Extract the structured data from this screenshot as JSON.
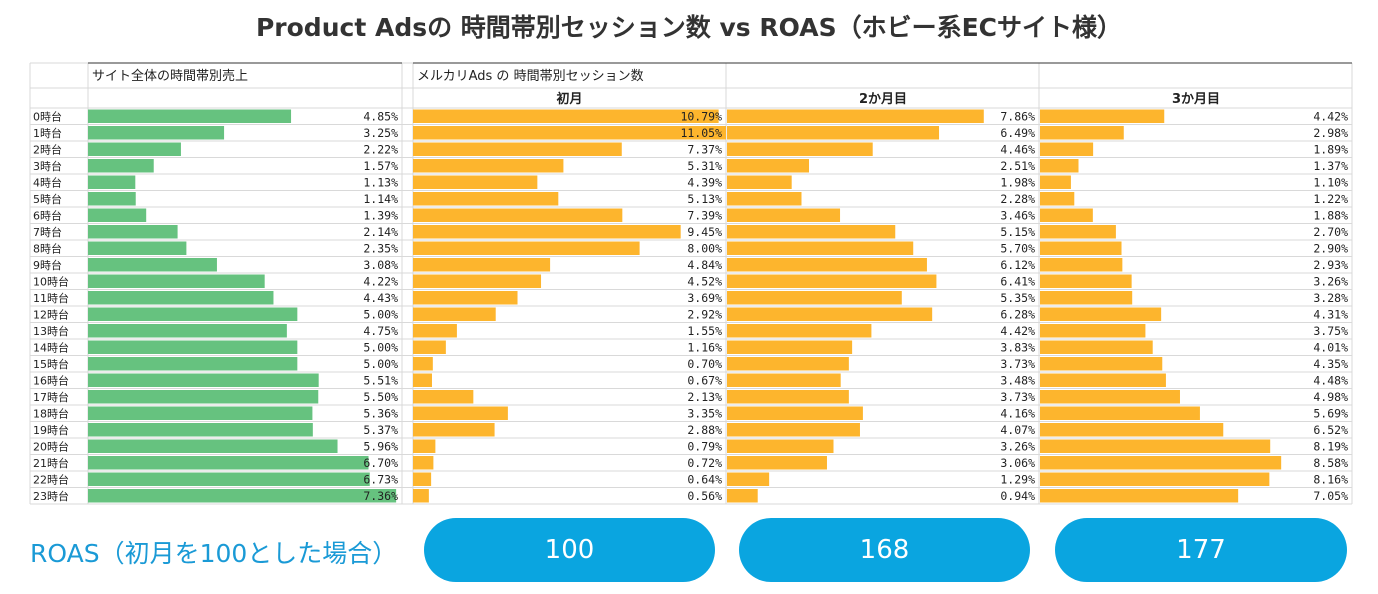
{
  "title": "Product Adsの 時間帯別セッション数 vs ROAS（ホビー系ECサイト様）",
  "colors": {
    "green": "#66c27f",
    "orange": "#fdb52d",
    "pill": "#0aa5e0",
    "grid": "#d9d9d9"
  },
  "chart_data": {
    "type": "table",
    "row_labels": [
      "0時台",
      "1時台",
      "2時台",
      "3時台",
      "4時台",
      "5時台",
      "6時台",
      "7時台",
      "8時台",
      "9時台",
      "10時台",
      "11時台",
      "12時台",
      "13時台",
      "14時台",
      "15時台",
      "16時台",
      "17時台",
      "18時台",
      "19時台",
      "20時台",
      "21時台",
      "22時台",
      "23時台"
    ],
    "group_headers": [
      "サイト全体の時間帯別売上",
      "メルカリAds の 時間帯別セッション数"
    ],
    "series": [
      {
        "name": "",
        "color": "#66c27f",
        "max": 7.5,
        "values": [
          4.85,
          3.25,
          2.22,
          1.57,
          1.13,
          1.14,
          1.39,
          2.14,
          2.35,
          3.08,
          4.22,
          4.43,
          5.0,
          4.75,
          5.0,
          5.0,
          5.51,
          5.5,
          5.36,
          5.37,
          5.96,
          6.7,
          6.73,
          7.36
        ],
        "labels": [
          "4.85%",
          "3.25%",
          "2.22%",
          "1.57%",
          "1.13%",
          "1.14%",
          "1.39%",
          "2.14%",
          "2.35%",
          "3.08%",
          "4.22%",
          "4.43%",
          "5.00%",
          "4.75%",
          "5.00%",
          "5.00%",
          "5.51%",
          "5.50%",
          "5.36%",
          "5.37%",
          "5.96%",
          "6.70%",
          "6.73%",
          "7.36%"
        ]
      },
      {
        "name": "初月",
        "color": "#fdb52d",
        "max": 11.05,
        "values": [
          10.79,
          11.05,
          7.37,
          5.31,
          4.39,
          5.13,
          7.39,
          9.45,
          8.0,
          4.84,
          4.52,
          3.69,
          2.92,
          1.55,
          1.16,
          0.7,
          0.67,
          2.13,
          3.35,
          2.88,
          0.79,
          0.72,
          0.64,
          0.56
        ],
        "labels": [
          "10.79%",
          "11.05%",
          "7.37%",
          "5.31%",
          "4.39%",
          "5.13%",
          "7.39%",
          "9.45%",
          "8.00%",
          "4.84%",
          "4.52%",
          "3.69%",
          "2.92%",
          "1.55%",
          "1.16%",
          "0.70%",
          "0.67%",
          "2.13%",
          "3.35%",
          "2.88%",
          "0.79%",
          "0.72%",
          "0.64%",
          "0.56%"
        ]
      },
      {
        "name": "2か月目",
        "color": "#fdb52d",
        "max": 9.55,
        "values": [
          7.86,
          6.49,
          4.46,
          2.51,
          1.98,
          2.28,
          3.46,
          5.15,
          5.7,
          6.12,
          6.41,
          5.35,
          6.28,
          4.42,
          3.83,
          3.73,
          3.48,
          3.73,
          4.16,
          4.07,
          3.26,
          3.06,
          1.29,
          0.94
        ],
        "labels": [
          "7.86%",
          "6.49%",
          "4.46%",
          "2.51%",
          "1.98%",
          "2.28%",
          "3.46%",
          "5.15%",
          "5.70%",
          "6.12%",
          "6.41%",
          "5.35%",
          "6.28%",
          "4.42%",
          "3.83%",
          "3.73%",
          "3.48%",
          "3.73%",
          "4.16%",
          "4.07%",
          "3.26%",
          "3.06%",
          "1.29%",
          "0.94%"
        ]
      },
      {
        "name": "3か月目",
        "color": "#fdb52d",
        "max": 11.1,
        "values": [
          4.42,
          2.98,
          1.89,
          1.37,
          1.1,
          1.22,
          1.88,
          2.7,
          2.9,
          2.93,
          3.26,
          3.28,
          4.31,
          3.75,
          4.01,
          4.35,
          4.48,
          4.98,
          5.69,
          6.52,
          8.19,
          8.58,
          8.16,
          7.05
        ],
        "labels": [
          "4.42%",
          "2.98%",
          "1.89%",
          "1.37%",
          "1.10%",
          "1.22%",
          "1.88%",
          "2.70%",
          "2.90%",
          "2.93%",
          "3.26%",
          "3.28%",
          "4.31%",
          "3.75%",
          "4.01%",
          "4.35%",
          "4.48%",
          "4.98%",
          "5.69%",
          "6.52%",
          "8.19%",
          "8.58%",
          "8.16%",
          "7.05%"
        ]
      }
    ]
  },
  "roas": {
    "label": "ROAS（初月を100とした場合）",
    "values": [
      "100",
      "168",
      "177"
    ]
  }
}
